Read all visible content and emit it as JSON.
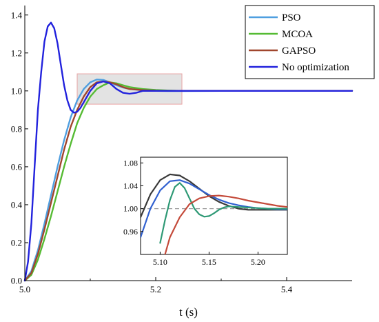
{
  "chart_data": {
    "type": "line",
    "xlabel": "t (s)",
    "ylabel": "",
    "title": "",
    "xlim": [
      5.0,
      5.5
    ],
    "ylim": [
      0.0,
      1.45
    ],
    "x_ticks": [
      "5.0",
      "5.2",
      "5.4"
    ],
    "y_ticks": [
      "0.0",
      "0.2",
      "0.4",
      "0.6",
      "0.8",
      "1.0",
      "1.2",
      "1.4"
    ],
    "legend_position": "top-right",
    "grid": false,
    "highlight_box": {
      "x": [
        5.08,
        5.24
      ],
      "y": [
        0.93,
        1.09
      ],
      "fill": "#e3e3e3",
      "stroke": "#e8a3a3"
    },
    "series": [
      {
        "name": "PSO",
        "color": "#4f9fe0",
        "x": [
          5.0,
          5.01,
          5.02,
          5.03,
          5.04,
          5.05,
          5.06,
          5.07,
          5.08,
          5.09,
          5.1,
          5.11,
          5.12,
          5.13,
          5.14,
          5.15,
          5.16,
          5.18,
          5.2,
          5.22,
          5.24,
          5.3,
          5.4,
          5.5
        ],
        "y": [
          0.0,
          0.05,
          0.16,
          0.3,
          0.45,
          0.6,
          0.74,
          0.86,
          0.95,
          1.01,
          1.045,
          1.06,
          1.058,
          1.045,
          1.03,
          1.018,
          1.01,
          1.003,
          1.0,
          0.999,
          0.999,
          1.0,
          1.0,
          1.0
        ]
      },
      {
        "name": "MCOA",
        "color": "#55bb33",
        "x": [
          5.0,
          5.01,
          5.02,
          5.03,
          5.04,
          5.05,
          5.06,
          5.07,
          5.08,
          5.09,
          5.1,
          5.11,
          5.12,
          5.13,
          5.14,
          5.15,
          5.16,
          5.18,
          5.2,
          5.22,
          5.24,
          5.3,
          5.4,
          5.5
        ],
        "y": [
          0.0,
          0.03,
          0.11,
          0.22,
          0.34,
          0.47,
          0.6,
          0.72,
          0.83,
          0.91,
          0.97,
          1.01,
          1.03,
          1.045,
          1.04,
          1.03,
          1.02,
          1.01,
          1.005,
          1.002,
          1.0,
          1.0,
          1.0,
          1.0
        ]
      },
      {
        "name": "GAPSO",
        "color": "#a0462d",
        "x": [
          5.0,
          5.01,
          5.02,
          5.03,
          5.04,
          5.05,
          5.06,
          5.07,
          5.08,
          5.09,
          5.1,
          5.11,
          5.12,
          5.13,
          5.14,
          5.15,
          5.16,
          5.18,
          5.2,
          5.22,
          5.24,
          5.3,
          5.4,
          5.5
        ],
        "y": [
          0.0,
          0.04,
          0.14,
          0.27,
          0.41,
          0.55,
          0.69,
          0.81,
          0.9,
          0.97,
          1.02,
          1.045,
          1.05,
          1.045,
          1.035,
          1.02,
          1.01,
          1.004,
          1.001,
          1.0,
          1.0,
          1.0,
          1.0,
          1.0
        ]
      },
      {
        "name": "No optimization",
        "color": "#2222dd",
        "x": [
          5.0,
          5.005,
          5.01,
          5.015,
          5.02,
          5.025,
          5.03,
          5.035,
          5.04,
          5.045,
          5.05,
          5.055,
          5.06,
          5.065,
          5.07,
          5.075,
          5.08,
          5.085,
          5.09,
          5.1,
          5.11,
          5.12,
          5.13,
          5.14,
          5.15,
          5.16,
          5.17,
          5.18,
          5.2,
          5.22,
          5.24,
          5.3,
          5.4,
          5.5
        ],
        "y": [
          0.0,
          0.1,
          0.3,
          0.6,
          0.9,
          1.1,
          1.26,
          1.34,
          1.36,
          1.33,
          1.25,
          1.14,
          1.03,
          0.95,
          0.9,
          0.885,
          0.89,
          0.91,
          0.94,
          1.0,
          1.04,
          1.05,
          1.04,
          1.01,
          0.99,
          0.985,
          0.99,
          1.0,
          1.0,
          1.0,
          1.0,
          1.0,
          1.0,
          1.0
        ]
      }
    ],
    "inset": {
      "xlim": [
        5.08,
        5.23
      ],
      "ylim": [
        0.92,
        1.09
      ],
      "x_ticks": [
        "5.10",
        "5.15",
        "5.20"
      ],
      "y_ticks": [
        "0.96",
        "1.00",
        "1.04",
        "1.08"
      ],
      "reference_line": 1.0,
      "series": [
        {
          "color": "#3a3a3a",
          "x": [
            5.08,
            5.09,
            5.1,
            5.11,
            5.12,
            5.13,
            5.14,
            5.15,
            5.16,
            5.17,
            5.18,
            5.19,
            5.2,
            5.21,
            5.22,
            5.23
          ],
          "y": [
            0.985,
            1.025,
            1.05,
            1.06,
            1.058,
            1.048,
            1.035,
            1.022,
            1.012,
            1.005,
            1.0,
            0.998,
            0.998,
            0.998,
            0.998,
            0.998
          ]
        },
        {
          "color": "#3060d0",
          "x": [
            5.08,
            5.09,
            5.1,
            5.11,
            5.12,
            5.13,
            5.14,
            5.15,
            5.16,
            5.17,
            5.18,
            5.19,
            5.2,
            5.21,
            5.22,
            5.23
          ],
          "y": [
            0.95,
            1.0,
            1.032,
            1.048,
            1.05,
            1.044,
            1.034,
            1.024,
            1.016,
            1.01,
            1.006,
            1.003,
            1.001,
            1.0,
            0.999,
            0.999
          ]
        },
        {
          "color": "#2e9975",
          "x": [
            5.1,
            5.105,
            5.11,
            5.115,
            5.12,
            5.125,
            5.13,
            5.135,
            5.14,
            5.145,
            5.15,
            5.155,
            5.16,
            5.165,
            5.17,
            5.18,
            5.19,
            5.2,
            5.21,
            5.22,
            5.23
          ],
          "y": [
            0.94,
            0.98,
            1.015,
            1.038,
            1.045,
            1.036,
            1.018,
            1.0,
            0.99,
            0.986,
            0.987,
            0.992,
            0.998,
            1.002,
            1.004,
            1.003,
            1.002,
            1.001,
            1.0,
            1.0,
            1.0
          ]
        },
        {
          "color": "#c44a3a",
          "x": [
            5.105,
            5.11,
            5.12,
            5.13,
            5.14,
            5.15,
            5.16,
            5.17,
            5.18,
            5.19,
            5.2,
            5.21,
            5.22,
            5.23
          ],
          "y": [
            0.92,
            0.95,
            0.985,
            1.008,
            1.018,
            1.022,
            1.023,
            1.021,
            1.018,
            1.014,
            1.011,
            1.008,
            1.005,
            1.003
          ]
        }
      ]
    }
  }
}
